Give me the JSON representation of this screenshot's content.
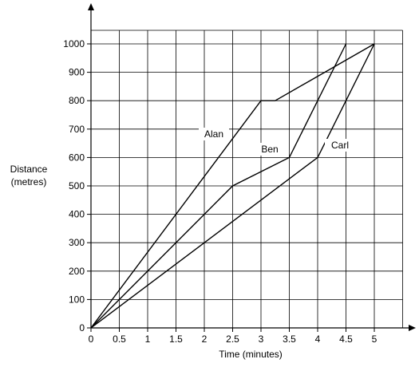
{
  "chart_data": {
    "type": "line",
    "xlabel": "Time (minutes)",
    "ylabel_lines": [
      "Distance",
      "(metres)"
    ],
    "x_ticks": [
      "0",
      "0.5",
      "1",
      "1.5",
      "2",
      "2.5",
      "3",
      "3.5",
      "4",
      "4.5",
      "5"
    ],
    "y_ticks": [
      "0",
      "100",
      "200",
      "300",
      "400",
      "500",
      "600",
      "700",
      "800",
      "900",
      "1000"
    ],
    "xlim": [
      0,
      5.5
    ],
    "ylim": [
      0,
      1000
    ],
    "grid": true,
    "series": [
      {
        "name": "Alan",
        "points": [
          [
            0,
            0
          ],
          [
            3,
            800
          ],
          [
            3.25,
            800
          ],
          [
            5,
            1000
          ]
        ]
      },
      {
        "name": "Ben",
        "points": [
          [
            0,
            0
          ],
          [
            2.5,
            500
          ],
          [
            3.5,
            600
          ],
          [
            4.5,
            1000
          ]
        ]
      },
      {
        "name": "Carl",
        "points": [
          [
            0,
            0
          ],
          [
            4,
            600
          ],
          [
            5,
            1000
          ]
        ]
      }
    ],
    "line_color": "#000000"
  }
}
